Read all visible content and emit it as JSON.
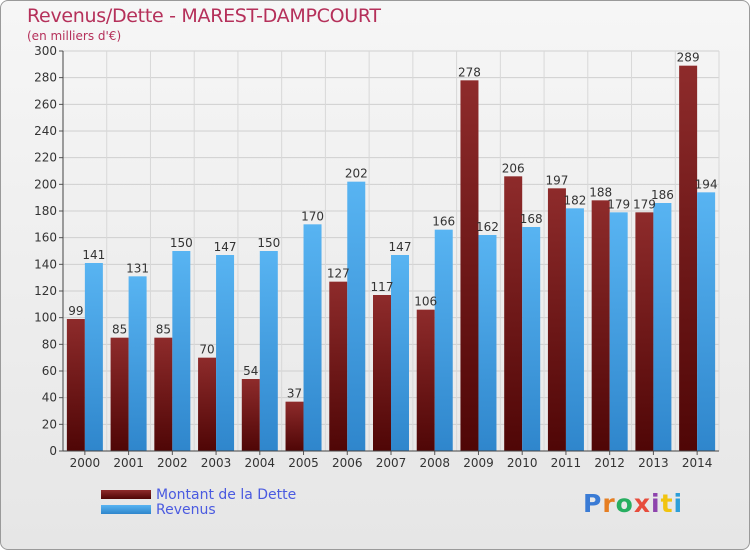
{
  "header": {
    "title": "Revenus/Dette - MAREST-DAMPCOURT",
    "subtitle": "(en milliers d'€)"
  },
  "chart_data": {
    "type": "bar",
    "title": "Revenus/Dette - MAREST-DAMPCOURT",
    "ylabel": "(en milliers d'€)",
    "xlabel": "",
    "categories": [
      "2000",
      "2001",
      "2002",
      "2003",
      "2004",
      "2005",
      "2006",
      "2007",
      "2008",
      "2009",
      "2010",
      "2011",
      "2012",
      "2013",
      "2014"
    ],
    "series": [
      {
        "name": "Montant de la Dette",
        "color": "#7b1818",
        "values": [
          99,
          85,
          85,
          70,
          54,
          37,
          127,
          117,
          106,
          278,
          206,
          197,
          188,
          179,
          289
        ]
      },
      {
        "name": "Revenus",
        "color": "#4aa3e8",
        "values": [
          141,
          131,
          150,
          147,
          150,
          170,
          202,
          147,
          166,
          162,
          168,
          182,
          179,
          186,
          194
        ]
      }
    ],
    "ylim": [
      0,
      300
    ],
    "yticks": [
      0,
      20,
      40,
      60,
      80,
      100,
      120,
      140,
      160,
      180,
      200,
      220,
      240,
      260,
      280,
      300
    ],
    "grid": true,
    "legend_position": "bottom-left"
  },
  "legend": {
    "items": [
      {
        "label": "Montant de la Dette",
        "color": "#6a0f0f"
      },
      {
        "label": "Revenus",
        "color": "#4aa3e8"
      }
    ]
  },
  "logo": {
    "letters": [
      "P",
      "r",
      "o",
      "x",
      "i",
      "t",
      "i"
    ],
    "colors": [
      "#3a7bd5",
      "#e67e22",
      "#27ae60",
      "#e74c3c",
      "#8e44ad",
      "#f1c40f",
      "#2c9fd9"
    ]
  }
}
